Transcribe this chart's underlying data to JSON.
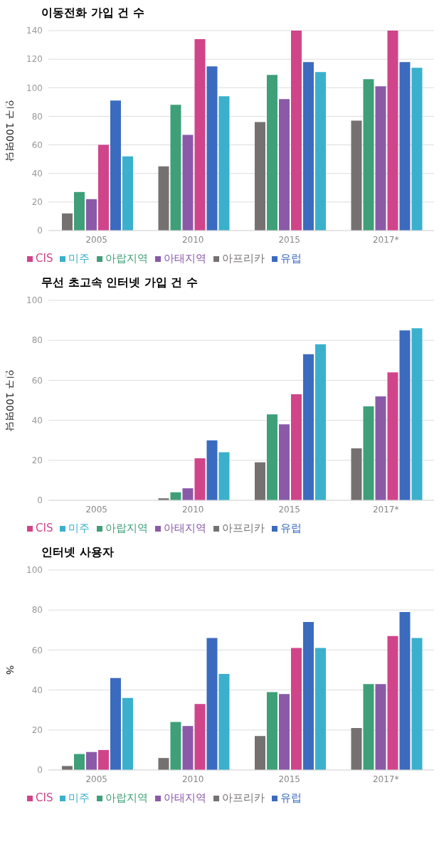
{
  "chart_data": [
    {
      "type": "bar",
      "title": "이동전화 가입 건 수",
      "ylabel": "인구 100명당",
      "categories": [
        "2005",
        "2010",
        "2015",
        "2017*"
      ],
      "series": [
        {
          "name": "아프리카",
          "color": "#767171",
          "values": [
            12,
            45,
            76,
            77
          ]
        },
        {
          "name": "아랍지역",
          "color": "#3f9f78",
          "values": [
            27,
            88,
            109,
            106
          ]
        },
        {
          "name": "아태지역",
          "color": "#8a5aa8",
          "values": [
            22,
            67,
            92,
            101
          ]
        },
        {
          "name": "CIS",
          "color": "#d0448a",
          "values": [
            60,
            134,
            140,
            140
          ]
        },
        {
          "name": "유럽",
          "color": "#3b6bbf",
          "values": [
            91,
            115,
            118,
            118
          ]
        },
        {
          "name": "미주",
          "color": "#3ab0cc",
          "values": [
            52,
            94,
            111,
            114
          ]
        }
      ],
      "ylim": [
        0,
        140
      ],
      "yticks": [
        0,
        20,
        40,
        60,
        80,
        100,
        120,
        140
      ],
      "grid": "y",
      "legend": "bottom"
    },
    {
      "type": "bar",
      "title": "무선 초고속 인터넷 가입 건 수",
      "ylabel": "인구 100명당",
      "categories": [
        "2005",
        "2010",
        "2015",
        "2017*"
      ],
      "series": [
        {
          "name": "아프리카",
          "color": "#767171",
          "values": [
            0,
            1,
            19,
            26
          ]
        },
        {
          "name": "아랍지역",
          "color": "#3f9f78",
          "values": [
            0,
            4,
            43,
            47
          ]
        },
        {
          "name": "아태지역",
          "color": "#8a5aa8",
          "values": [
            0,
            6,
            38,
            52
          ]
        },
        {
          "name": "CIS",
          "color": "#d0448a",
          "values": [
            0,
            21,
            53,
            64
          ]
        },
        {
          "name": "유럽",
          "color": "#3b6bbf",
          "values": [
            0,
            30,
            73,
            85
          ]
        },
        {
          "name": "미주",
          "color": "#3ab0cc",
          "values": [
            0,
            24,
            78,
            86
          ]
        }
      ],
      "ylim": [
        0,
        100
      ],
      "yticks": [
        0,
        20,
        40,
        60,
        80,
        100
      ],
      "grid": "y",
      "legend": "bottom"
    },
    {
      "type": "bar",
      "title": "인터넷 사용자",
      "ylabel": "%",
      "categories": [
        "2005",
        "2010",
        "2015",
        "2017*"
      ],
      "series": [
        {
          "name": "아프리카",
          "color": "#767171",
          "values": [
            2,
            6,
            17,
            21
          ]
        },
        {
          "name": "아랍지역",
          "color": "#3f9f78",
          "values": [
            8,
            24,
            39,
            43
          ]
        },
        {
          "name": "아태지역",
          "color": "#8a5aa8",
          "values": [
            9,
            22,
            38,
            43
          ]
        },
        {
          "name": "CIS",
          "color": "#d0448a",
          "values": [
            10,
            33,
            61,
            67
          ]
        },
        {
          "name": "유럽",
          "color": "#3b6bbf",
          "values": [
            46,
            66,
            74,
            79
          ]
        },
        {
          "name": "미주",
          "color": "#3ab0cc",
          "values": [
            36,
            48,
            61,
            66
          ]
        }
      ],
      "ylim": [
        0,
        100
      ],
      "yticks": [
        0,
        20,
        40,
        60,
        80,
        100
      ],
      "grid": "y",
      "legend": "bottom"
    }
  ]
}
